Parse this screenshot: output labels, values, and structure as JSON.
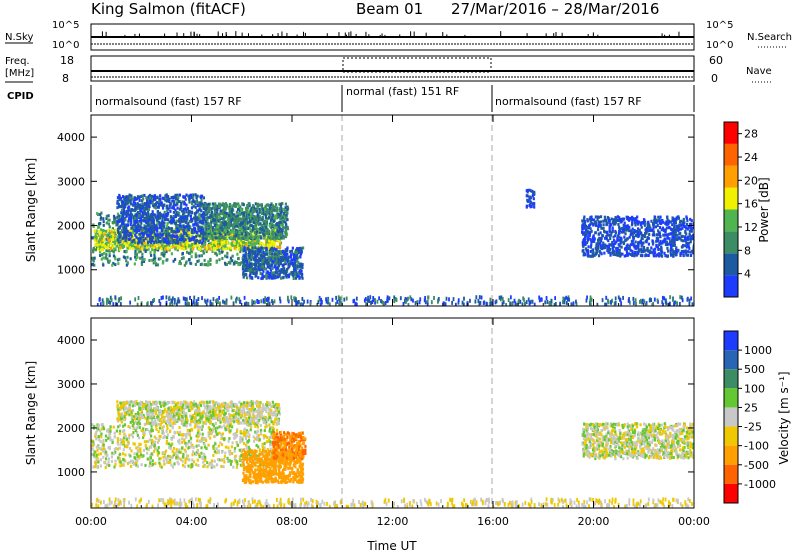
{
  "header": {
    "title": "King Salmon (fitACF)",
    "beam": "Beam 01",
    "date_range": "27/Mar/2016 – 28/Mar/2016"
  },
  "status_panels": {
    "nsky_label": "N.Sky",
    "nsearch_label": "N.Search",
    "nsky_ticks": [
      "10^5",
      "10^0"
    ],
    "nsearch_ticks": [
      "10^5",
      "10^0"
    ],
    "freq_label_line1": "Freq.",
    "freq_label_line2": "[MHz]",
    "freq_ticks": [
      "18",
      "8"
    ],
    "nave_label": "Nave",
    "nave_ticks": [
      "60",
      "0"
    ],
    "cpid_label": "CPID",
    "cpid_segments": [
      {
        "label": "normalsound (fast) 157 RF",
        "start_h": 0,
        "end_h": 10
      },
      {
        "label": "normal (fast) 151 RF",
        "start_h": 10,
        "end_h": 16
      },
      {
        "label": "normalsound (fast) 157 RF",
        "start_h": 16,
        "end_h": 24
      }
    ]
  },
  "colors": {
    "power_scale": [
      "#1e3cff",
      "#1e5aa0",
      "#3c8c64",
      "#50b450",
      "#f0f000",
      "#ffa000",
      "#ff6400",
      "#ff0000"
    ],
    "velocity_scale": [
      "#1e3cff",
      "#2a64b4",
      "#3c8c64",
      "#64c832",
      "#c8c8c8",
      "#f0c800",
      "#ffa000",
      "#ff6400",
      "#ff0000"
    ]
  },
  "chart_data": [
    {
      "type": "heatmap",
      "panel": "power",
      "ylabel": "Slant Range [km]",
      "xlabel": "",
      "y_ticks": [
        "1000",
        "2000",
        "3000",
        "4000"
      ],
      "x_ticks": [
        "00:00",
        "04:00",
        "08:00",
        "12:00",
        "16:00",
        "20:00",
        "00:00"
      ],
      "xlim_hours": [
        0,
        24
      ],
      "ylim_km": [
        180,
        4500
      ],
      "colorbar_label": "Power [dB]",
      "colorbar_ticks": [
        "4",
        "8",
        "12",
        "16",
        "20",
        "24",
        "28"
      ],
      "colorbar_range": [
        0,
        30
      ],
      "mode_change_hours": [
        10,
        16
      ],
      "echo_regions": [
        {
          "t_start": 0.0,
          "t_end": 7.6,
          "r_start": 1100,
          "r_end": 2300,
          "level": 10
        },
        {
          "t_start": 0.1,
          "t_end": 7.5,
          "r_start": 1450,
          "r_end": 1900,
          "level": 17
        },
        {
          "t_start": 1.0,
          "t_end": 4.5,
          "r_start": 1600,
          "r_end": 2700,
          "level": 5
        },
        {
          "t_start": 4.5,
          "t_end": 7.8,
          "r_start": 1700,
          "r_end": 2500,
          "level": 9
        },
        {
          "t_start": 6.0,
          "t_end": 8.4,
          "r_start": 800,
          "r_end": 1500,
          "level": 6
        },
        {
          "t_start": 17.3,
          "t_end": 17.6,
          "r_start": 2400,
          "r_end": 2800,
          "level": 3
        },
        {
          "t_start": 19.5,
          "t_end": 24.0,
          "r_start": 1300,
          "r_end": 2200,
          "level": 4
        }
      ]
    },
    {
      "type": "heatmap",
      "panel": "velocity",
      "ylabel": "Slant Range [km]",
      "xlabel": "Time UT",
      "y_ticks": [
        "1000",
        "2000",
        "3000",
        "4000"
      ],
      "x_ticks": [
        "00:00",
        "04:00",
        "08:00",
        "12:00",
        "16:00",
        "20:00",
        "00:00"
      ],
      "xlim_hours": [
        0,
        24
      ],
      "ylim_km": [
        180,
        4500
      ],
      "colorbar_label": "Velocity [m s⁻¹]",
      "colorbar_ticks": [
        "1000",
        "500",
        "100",
        "25",
        "-25",
        "-100",
        "-500",
        "-1000"
      ],
      "mode_change_hours": [
        10,
        16
      ],
      "echo_regions": [
        {
          "t_start": 0.0,
          "t_end": 7.6,
          "r_start": 1100,
          "r_end": 2100,
          "velocity": 0
        },
        {
          "t_start": 1.0,
          "t_end": 7.5,
          "r_start": 2100,
          "r_end": 2600,
          "velocity": 0
        },
        {
          "t_start": 6.0,
          "t_end": 8.4,
          "r_start": 750,
          "r_end": 1500,
          "velocity": -300
        },
        {
          "t_start": 7.2,
          "t_end": 8.5,
          "r_start": 1300,
          "r_end": 1900,
          "velocity": -500
        },
        {
          "t_start": 19.5,
          "t_end": 24.0,
          "r_start": 1300,
          "r_end": 2100,
          "velocity": 0
        }
      ]
    }
  ]
}
